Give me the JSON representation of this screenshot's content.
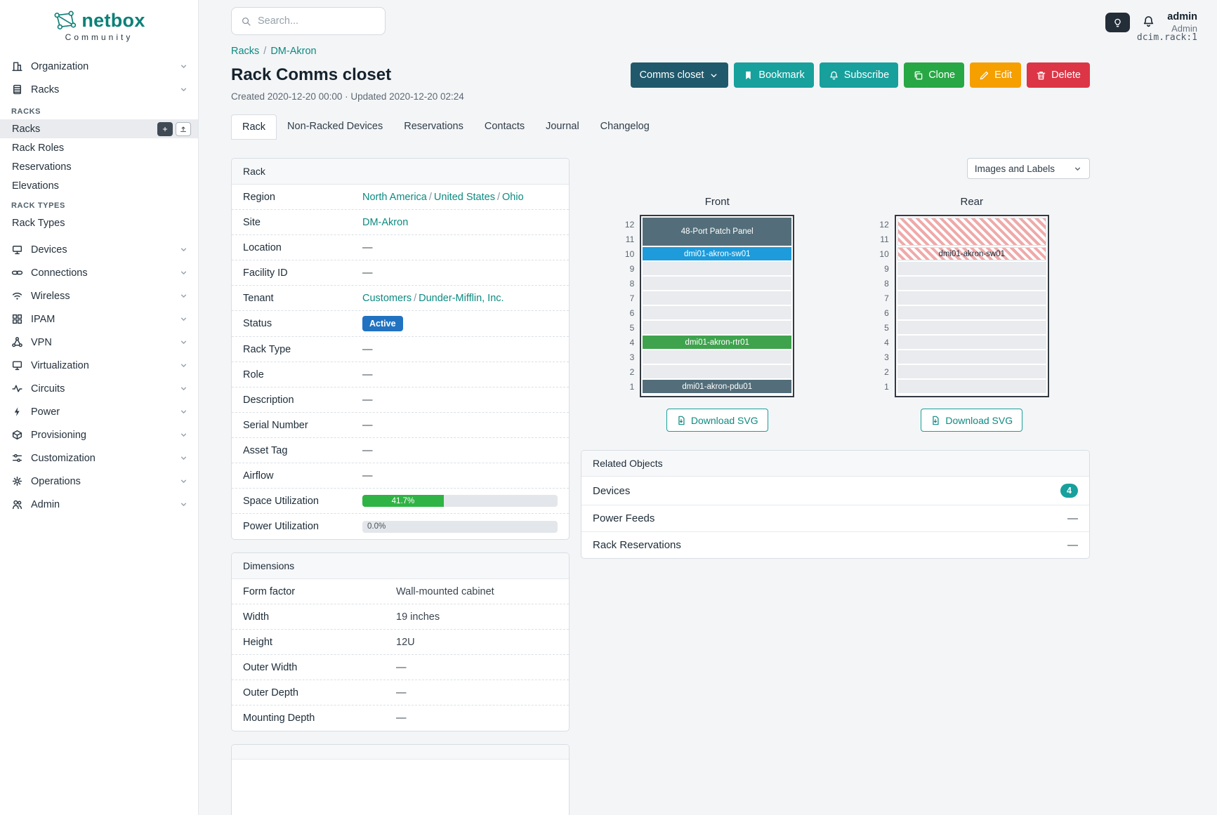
{
  "brand": {
    "name": "netbox",
    "subtitle": "Community"
  },
  "topbar": {
    "search_placeholder": "Search...",
    "theme_icon": "lightbulb-icon",
    "notifications_icon": "bell-icon",
    "user_name": "admin",
    "user_role": "Admin"
  },
  "sidebar": {
    "categories": [
      {
        "label": "Organization",
        "icon": "building-icon"
      },
      {
        "label": "Racks",
        "icon": "rack-icon"
      },
      {
        "label": "Devices",
        "icon": "devices-icon"
      },
      {
        "label": "Connections",
        "icon": "connections-icon"
      },
      {
        "label": "Wireless",
        "icon": "wifi-icon"
      },
      {
        "label": "IPAM",
        "icon": "grid-icon"
      },
      {
        "label": "VPN",
        "icon": "network-icon"
      },
      {
        "label": "Virtualization",
        "icon": "monitor-icon"
      },
      {
        "label": "Circuits",
        "icon": "pulse-icon"
      },
      {
        "label": "Power",
        "icon": "bolt-icon"
      },
      {
        "label": "Provisioning",
        "icon": "box-icon"
      },
      {
        "label": "Customization",
        "icon": "sliders-icon"
      },
      {
        "label": "Operations",
        "icon": "gear-icon"
      },
      {
        "label": "Admin",
        "icon": "users-icon"
      }
    ],
    "racks_submenu": {
      "section1_header": "RACKS",
      "items1": [
        {
          "label": "Racks",
          "active": true
        },
        {
          "label": "Rack Roles"
        },
        {
          "label": "Reservations"
        },
        {
          "label": "Elevations"
        }
      ],
      "section2_header": "RACK TYPES",
      "items2": [
        {
          "label": "Rack Types"
        }
      ]
    }
  },
  "breadcrumb": {
    "links": [
      "Racks",
      "DM-Akron"
    ],
    "separator": "/",
    "object_id": "dcim.rack:1"
  },
  "page": {
    "title": "Rack Comms closet",
    "meta": "Created 2020-12-20 00:00 · Updated 2020-12-20 02:24",
    "actions": {
      "dropdown": "Comms closet",
      "bookmark": "Bookmark",
      "subscribe": "Subscribe",
      "clone": "Clone",
      "edit": "Edit",
      "delete": "Delete"
    },
    "tabs": [
      "Rack",
      "Non-Racked Devices",
      "Reservations",
      "Contacts",
      "Journal",
      "Changelog"
    ],
    "active_tab": "Rack"
  },
  "rack_card": {
    "title": "Rack",
    "separator": "/",
    "rows": [
      {
        "label": "Region",
        "parts": [
          "North America",
          "United States",
          "Ohio"
        ]
      },
      {
        "label": "Site",
        "value": "DM-Akron"
      },
      {
        "label": "Location",
        "value": "—"
      },
      {
        "label": "Facility ID",
        "value": "—"
      },
      {
        "label": "Tenant",
        "parts": [
          "Customers",
          "Dunder-Mifflin, Inc."
        ]
      },
      {
        "label": "Status",
        "value": "Active"
      },
      {
        "label": "Rack Type",
        "value": "—"
      },
      {
        "label": "Role",
        "value": "—"
      },
      {
        "label": "Description",
        "value": "—"
      },
      {
        "label": "Serial Number",
        "value": "—"
      },
      {
        "label": "Asset Tag",
        "value": "—"
      },
      {
        "label": "Airflow",
        "value": "—"
      },
      {
        "label": "Space Utilization",
        "value": 41.7,
        "display": "41.7%"
      },
      {
        "label": "Power Utilization",
        "value": 0.0,
        "display": "0.0%"
      }
    ]
  },
  "dimensions_card": {
    "title": "Dimensions",
    "rows": [
      {
        "label": "Form factor",
        "value": "Wall-mounted cabinet"
      },
      {
        "label": "Width",
        "value": "19 inches"
      },
      {
        "label": "Height",
        "value": "12U"
      },
      {
        "label": "Outer Width",
        "value": "—"
      },
      {
        "label": "Outer Depth",
        "value": "—"
      },
      {
        "label": "Mounting Depth",
        "value": "—"
      }
    ]
  },
  "elevation_controls": {
    "images_and_labels": "Images and Labels"
  },
  "elevations": {
    "unit_count": 12,
    "front": {
      "title": "Front",
      "download_label": "Download SVG",
      "devices": [
        {
          "label": "48-Port Patch Panel",
          "top_u": 12,
          "u_height": 2,
          "fill": "#536e7a",
          "text_color": "#ffffff",
          "hatched": false
        },
        {
          "label": "dmi01-akron-sw01",
          "top_u": 10,
          "u_height": 1,
          "fill": "#1d9bdb",
          "text_color": "#ffffff",
          "hatched": false
        },
        {
          "label": "dmi01-akron-rtr01",
          "top_u": 4,
          "u_height": 1,
          "fill": "#3fa34d",
          "text_color": "#ffffff",
          "hatched": false
        },
        {
          "label": "dmi01-akron-pdu01",
          "top_u": 1,
          "u_height": 1,
          "fill": "#536e7a",
          "text_color": "#ffffff",
          "hatched": false
        }
      ]
    },
    "rear": {
      "title": "Rear",
      "download_label": "Download SVG",
      "devices": [
        {
          "label": "",
          "top_u": 12,
          "u_height": 2,
          "hatched": true
        },
        {
          "label": "dmi01-akron-sw01",
          "top_u": 10,
          "u_height": 1,
          "hatched": true,
          "text_color": "#1d2c38"
        }
      ]
    }
  },
  "related_card": {
    "title": "Related Objects",
    "rows": [
      {
        "label": "Devices",
        "badge": "4"
      },
      {
        "label": "Power Feeds",
        "value": "—"
      },
      {
        "label": "Rack Reservations",
        "value": "—"
      }
    ]
  },
  "colors": {
    "brand_teal": "#0c8078",
    "link_teal": "#0c8a80",
    "button_teal": "#17a09c",
    "button_green": "#28a745",
    "button_orange": "#f59f00",
    "button_red": "#dc3545",
    "button_dark": "#20596b",
    "status_active_bg": "#2173c2",
    "progress_green": "#2fb344",
    "device_dark": "#536e7a",
    "device_blue": "#1d9bdb",
    "device_green": "#3fa34d"
  }
}
